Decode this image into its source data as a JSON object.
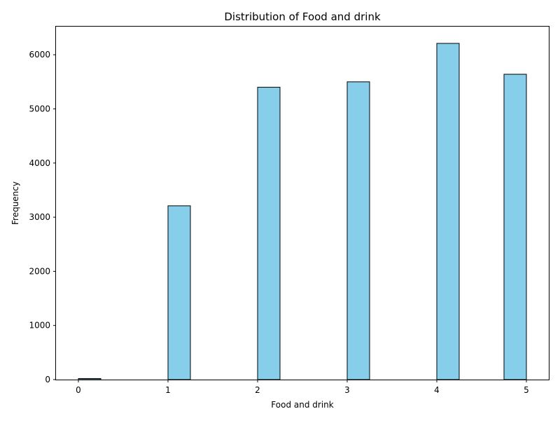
{
  "chart_data": {
    "type": "bar",
    "title": "Distribution of Food and drink",
    "xlabel": "Food and drink",
    "ylabel": "Frequency",
    "bins": [
      {
        "x0": 0.0,
        "x1": 0.25,
        "value": 20
      },
      {
        "x0": 1.0,
        "x1": 1.25,
        "value": 3210
      },
      {
        "x0": 2.0,
        "x1": 2.25,
        "value": 5400
      },
      {
        "x0": 3.0,
        "x1": 3.25,
        "value": 5500
      },
      {
        "x0": 4.0,
        "x1": 4.25,
        "value": 6210
      },
      {
        "x0": 4.75,
        "x1": 5.0,
        "value": 5640
      }
    ],
    "xlim": [
      -0.25,
      5.25
    ],
    "ylim": [
      0,
      6520
    ],
    "xticks": [
      0,
      1,
      2,
      3,
      4,
      5
    ],
    "yticks": [
      0,
      1000,
      2000,
      3000,
      4000,
      5000,
      6000
    ],
    "grid": false,
    "bar_color": "#87ceeb",
    "edge_color": "#000000"
  }
}
